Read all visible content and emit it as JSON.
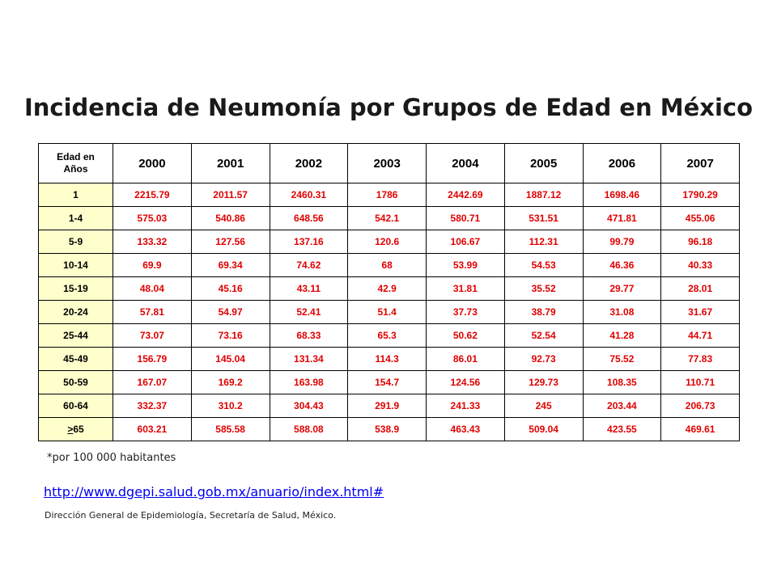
{
  "title": "Incidencia de Neumonía por Grupos de Edad en México",
  "table": {
    "corner_line1": "Edad en",
    "corner_line2": "Años",
    "years": [
      "2000",
      "2001",
      "2002",
      "2003",
      "2004",
      "2005",
      "2006",
      "2007"
    ],
    "rows": [
      {
        "age": "1",
        "values": [
          "2215.79",
          "2011.57",
          "2460.31",
          "1786",
          "2442.69",
          "1887.12",
          "1698.46",
          "1790.29"
        ]
      },
      {
        "age": "1-4",
        "values": [
          "575.03",
          "540.86",
          "648.56",
          "542.1",
          "580.71",
          "531.51",
          "471.81",
          "455.06"
        ]
      },
      {
        "age": "5-9",
        "values": [
          "133.32",
          "127.56",
          "137.16",
          "120.6",
          "106.67",
          "112.31",
          "99.79",
          "96.18"
        ]
      },
      {
        "age": "10-14",
        "values": [
          "69.9",
          "69.34",
          "74.62",
          "68",
          "53.99",
          "54.53",
          "46.36",
          "40.33"
        ]
      },
      {
        "age": "15-19",
        "values": [
          "48.04",
          "45.16",
          "43.11",
          "42.9",
          "31.81",
          "35.52",
          "29.77",
          "28.01"
        ]
      },
      {
        "age": "20-24",
        "values": [
          "57.81",
          "54.97",
          "52.41",
          "51.4",
          "37.73",
          "38.79",
          "31.08",
          "31.67"
        ]
      },
      {
        "age": "25-44",
        "values": [
          "73.07",
          "73.16",
          "68.33",
          "65.3",
          "50.62",
          "52.54",
          "41.28",
          "44.71"
        ]
      },
      {
        "age": "45-49",
        "values": [
          "156.79",
          "145.04",
          "131.34",
          "114.3",
          "86.01",
          "92.73",
          "75.52",
          "77.83"
        ]
      },
      {
        "age": "50-59",
        "values": [
          "167.07",
          "169.2",
          "163.98",
          "154.7",
          "124.56",
          "129.73",
          "108.35",
          "110.71"
        ]
      },
      {
        "age": "60-64",
        "values": [
          "332.37",
          "310.2",
          "304.43",
          "291.9",
          "241.33",
          "245",
          "203.44",
          "206.73"
        ]
      },
      {
        "age": ">65",
        "age_mark": ">",
        "age_rest": "65",
        "values": [
          "603.21",
          "585.58",
          "588.08",
          "538.9",
          "463.43",
          "509.04",
          "423.55",
          "469.61"
        ]
      }
    ]
  },
  "note": "*por 100 000 habitantes",
  "link": "http://www.dgepi.salud.gob.mx/anuario/index.html#",
  "source": "Dirección General de Epidemiología, Secretaría de Salud, México.",
  "colors": {
    "age_cell_bg": "#ffffcc",
    "value_text": "#e00000",
    "link": "#0000ee"
  }
}
